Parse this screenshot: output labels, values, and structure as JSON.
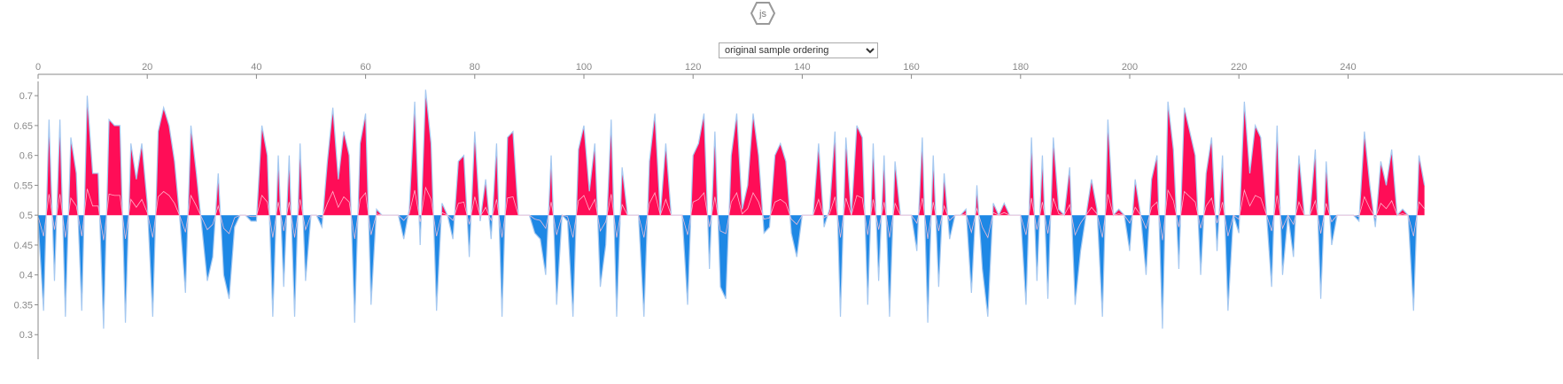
{
  "logo": {
    "text": "js"
  },
  "ordering": {
    "selected": "original sample ordering",
    "options": [
      "original sample ordering"
    ]
  },
  "colors": {
    "positive": "#ff0d57",
    "negative": "#1e88e5",
    "boundary": "#a5c8f0",
    "positive_boundary": "#ffc3d5",
    "axis": "#888888"
  },
  "chart_data": {
    "type": "area",
    "title": "",
    "xlabel": "",
    "ylabel": "",
    "base_value": 0.5,
    "xlim": [
      0,
      248
    ],
    "ylim": [
      0.29,
      0.715
    ],
    "x_ticks": [
      0,
      20,
      40,
      60,
      80,
      100,
      120,
      140,
      160,
      180,
      200,
      220,
      240
    ],
    "y_ticks": [
      0.3,
      0.35,
      0.4,
      0.45,
      0.5,
      0.55,
      0.6,
      0.65,
      0.7
    ],
    "series": [
      {
        "values": [
          0.49,
          0.34,
          0.66,
          0.39,
          0.66,
          0.33,
          0.63,
          0.57,
          0.34,
          0.7,
          0.57,
          0.57,
          0.31,
          0.66,
          0.65,
          0.65,
          0.32,
          0.62,
          0.56,
          0.62,
          0.52,
          0.33,
          0.64,
          0.68,
          0.65,
          0.59,
          0.49,
          0.37,
          0.65,
          0.57,
          0.48,
          0.39,
          0.43,
          0.57,
          0.4,
          0.36,
          0.48,
          0.5,
          0.5,
          0.49,
          0.49,
          0.65,
          0.6,
          0.33,
          0.6,
          0.38,
          0.6,
          0.33,
          0.62,
          0.39,
          0.5,
          0.5,
          0.48,
          0.59,
          0.68,
          0.56,
          0.64,
          0.6,
          0.32,
          0.62,
          0.67,
          0.35,
          0.51,
          0.5,
          0.5,
          0.5,
          0.5,
          0.46,
          0.51,
          0.69,
          0.45,
          0.71,
          0.62,
          0.34,
          0.52,
          0.5,
          0.46,
          0.59,
          0.6,
          0.43,
          0.64,
          0.49,
          0.56,
          0.46,
          0.62,
          0.33,
          0.63,
          0.64,
          0.5,
          0.5,
          0.5,
          0.47,
          0.46,
          0.4,
          0.6,
          0.35,
          0.5,
          0.49,
          0.33,
          0.61,
          0.65,
          0.54,
          0.62,
          0.38,
          0.45,
          0.66,
          0.33,
          0.58,
          0.5,
          0.5,
          0.5,
          0.33,
          0.59,
          0.67,
          0.5,
          0.62,
          0.5,
          0.5,
          0.5,
          0.35,
          0.6,
          0.62,
          0.67,
          0.41,
          0.64,
          0.38,
          0.36,
          0.6,
          0.67,
          0.51,
          0.55,
          0.67,
          0.6,
          0.47,
          0.48,
          0.6,
          0.62,
          0.59,
          0.47,
          0.43,
          0.5,
          0.5,
          0.5,
          0.62,
          0.48,
          0.51,
          0.64,
          0.33,
          0.63,
          0.5,
          0.65,
          0.63,
          0.35,
          0.62,
          0.39,
          0.6,
          0.33,
          0.59,
          0.5,
          0.5,
          0.5,
          0.44,
          0.63,
          0.32,
          0.6,
          0.38,
          0.57,
          0.46,
          0.5,
          0.5,
          0.51,
          0.37,
          0.55,
          0.41,
          0.33,
          0.52,
          0.5,
          0.52,
          0.5,
          0.5,
          0.5,
          0.35,
          0.63,
          0.39,
          0.6,
          0.36,
          0.63,
          0.51,
          0.5,
          0.58,
          0.35,
          0.44,
          0.5,
          0.56,
          0.51,
          0.33,
          0.66,
          0.5,
          0.51,
          0.5,
          0.44,
          0.56,
          0.5,
          0.4,
          0.56,
          0.6,
          0.31,
          0.69,
          0.61,
          0.41,
          0.68,
          0.64,
          0.6,
          0.4,
          0.57,
          0.63,
          0.44,
          0.6,
          0.34,
          0.5,
          0.47,
          0.69,
          0.57,
          0.65,
          0.63,
          0.51,
          0.38,
          0.65,
          0.4,
          0.5,
          0.43,
          0.6,
          0.5,
          0.5,
          0.61,
          0.36,
          0.59,
          0.45,
          0.5,
          0.5,
          0.5,
          0.5,
          0.49,
          0.64,
          0.55,
          0.48,
          0.59,
          0.55,
          0.61,
          0.5,
          0.51,
          0.5,
          0.34,
          0.6,
          0.55
        ]
      }
    ]
  }
}
